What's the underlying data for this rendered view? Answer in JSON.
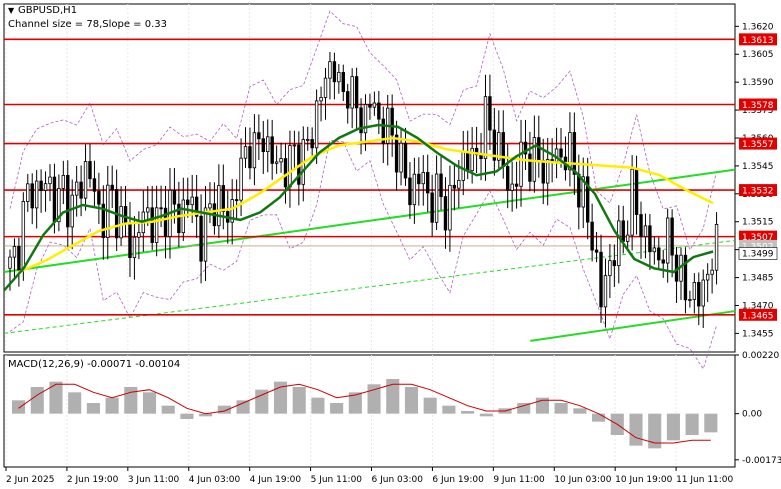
{
  "header": {
    "symbol": "GBPUSD,H1",
    "channel_info": "Channel size = 78,Slope = 0.33"
  },
  "colors": {
    "candle": "#000000",
    "level": "#e00000",
    "level_label_bg": "#e00000",
    "trend": "#22dd22",
    "ma_slow": "#ffee00",
    "ma_fast": "#117711",
    "envelope": "#b060c0",
    "macd_hist": "#b0b0b0",
    "macd_signal": "#cc0000",
    "grid": "#e8e8e8",
    "axis": "#000000"
  },
  "chart_data": [
    {
      "type": "candlestick",
      "ylim": [
        1.3445,
        1.3632
      ],
      "y_ticks": [
        "1.3620",
        "1.3605",
        "1.3590",
        "1.3575",
        "1.3560",
        "1.3545",
        "1.3530",
        "1.3515",
        "1.3500",
        "1.3485",
        "1.3470",
        "1.3455"
      ],
      "x_ticks": [
        "2 Jun 2025",
        "2 Jun 19:00",
        "3 Jun 11:00",
        "4 Jun 03:00",
        "4 Jun 19:00",
        "5 Jun 11:00",
        "6 Jun 03:00",
        "6 Jun 19:00",
        "9 Jun 11:00",
        "10 Jun 03:00",
        "10 Jun 19:00",
        "11 Jun 11:00"
      ],
      "levels": [
        {
          "value": 1.3613,
          "label": "1.3613"
        },
        {
          "value": 1.3578,
          "label": "1.3578"
        },
        {
          "value": 1.3557,
          "label": "1.3557"
        },
        {
          "value": 1.3532,
          "label": "1.3532"
        },
        {
          "value": 1.3507,
          "label": "1.3507"
        },
        {
          "value": 1.3465,
          "label": "1.3465"
        }
      ],
      "current_price": {
        "value": 1.3499,
        "label": "1.3499"
      },
      "hidden_price": {
        "value": 1.3502,
        "label": "1.3502"
      },
      "trendlines": [
        {
          "from": [
            0,
            1.3488
          ],
          "to": [
            1.0,
            1.3543
          ],
          "style": "solid"
        },
        {
          "from": [
            0,
            1.3455
          ],
          "to": [
            1.0,
            1.3505
          ],
          "style": "dashed"
        },
        {
          "from": [
            0.72,
            1.3451
          ],
          "to": [
            1.0,
            1.3467
          ],
          "style": "solid"
        }
      ],
      "close_path": [
        1.349,
        1.35,
        1.3525,
        1.3535,
        1.353,
        1.354,
        1.352,
        1.3535,
        1.352,
        1.3535,
        1.3545,
        1.353,
        1.3515,
        1.353,
        1.352,
        1.351,
        1.35,
        1.3515,
        1.352,
        1.3512,
        1.352,
        1.3525,
        1.3515,
        1.353,
        1.352,
        1.3505,
        1.352,
        1.353,
        1.3515,
        1.3525,
        1.354,
        1.356,
        1.355,
        1.3565,
        1.3545,
        1.355,
        1.354,
        1.3555,
        1.3545,
        1.356,
        1.3575,
        1.359,
        1.3605,
        1.358,
        1.359,
        1.3575,
        1.357,
        1.358,
        1.357,
        1.3565,
        1.356,
        1.3545,
        1.353,
        1.354,
        1.3535,
        1.3525,
        1.353,
        1.352,
        1.3535,
        1.355,
        1.3545,
        1.3555,
        1.357,
        1.356,
        1.355,
        1.353,
        1.354,
        1.3555,
        1.3545,
        1.355,
        1.354,
        1.3555,
        1.3548,
        1.3552,
        1.3535,
        1.352,
        1.3505,
        1.347,
        1.3495,
        1.35,
        1.351,
        1.353,
        1.3515,
        1.3505,
        1.3495,
        1.35,
        1.3505,
        1.349,
        1.3475,
        1.348,
        1.347,
        1.3495,
        1.3499
      ],
      "ma_fast_path": [
        1.3478,
        1.349,
        1.3508,
        1.352,
        1.3524,
        1.3522,
        1.3518,
        1.3515,
        1.3518,
        1.3522,
        1.352,
        1.3518,
        1.3516,
        1.352,
        1.3528,
        1.354,
        1.3552,
        1.356,
        1.3565,
        1.3567,
        1.3566,
        1.356,
        1.3552,
        1.3545,
        1.354,
        1.3542,
        1.355,
        1.3556,
        1.355,
        1.3542,
        1.353,
        1.351,
        1.3495,
        1.349,
        1.3488,
        1.3496,
        1.3499
      ],
      "ma_slow_path": [
        1.3488,
        1.3494,
        1.3502,
        1.351,
        1.3514,
        1.3515,
        1.3518,
        1.352,
        1.3522,
        1.353,
        1.354,
        1.355,
        1.3556,
        1.3558,
        1.356,
        1.3558,
        1.3554,
        1.3552,
        1.355,
        1.3548,
        1.3547,
        1.3546,
        1.3545,
        1.3544,
        1.354,
        1.3532,
        1.3525
      ]
    },
    {
      "type": "macd",
      "title": "MACD(12,26,9) -0.00071 -0.00104",
      "ylim": [
        -0.002,
        0.0022
      ],
      "y_ticks": [
        "0.00220",
        "0.00",
        "-0.00173"
      ],
      "histogram": [
        0.0005,
        0.001,
        0.0012,
        0.0008,
        0.0004,
        0.0006,
        0.001,
        0.0008,
        0.0003,
        -0.0002,
        -0.0001,
        0.0003,
        0.0005,
        0.0009,
        0.0012,
        0.001,
        0.0006,
        0.0004,
        0.0008,
        0.0011,
        0.0013,
        0.001,
        0.0006,
        0.0003,
        0.0001,
        -0.0001,
        0.0002,
        0.0004,
        0.0006,
        0.0004,
        0.0002,
        -0.0003,
        -0.0008,
        -0.0012,
        -0.0013,
        -0.001,
        -0.0008,
        -0.0007
      ],
      "signal": [
        0.0002,
        0.0007,
        0.0011,
        0.0011,
        0.0008,
        0.0006,
        0.0008,
        0.0009,
        0.0006,
        0.0002,
        0.0,
        0.0001,
        0.0004,
        0.0007,
        0.001,
        0.0011,
        0.0009,
        0.0006,
        0.0007,
        0.0009,
        0.0011,
        0.0011,
        0.0009,
        0.0006,
        0.0003,
        0.0001,
        0.0001,
        0.0003,
        0.0005,
        0.0005,
        0.0003,
        0.0,
        -0.0004,
        -0.0009,
        -0.0011,
        -0.0011,
        -0.001,
        -0.001
      ]
    }
  ]
}
